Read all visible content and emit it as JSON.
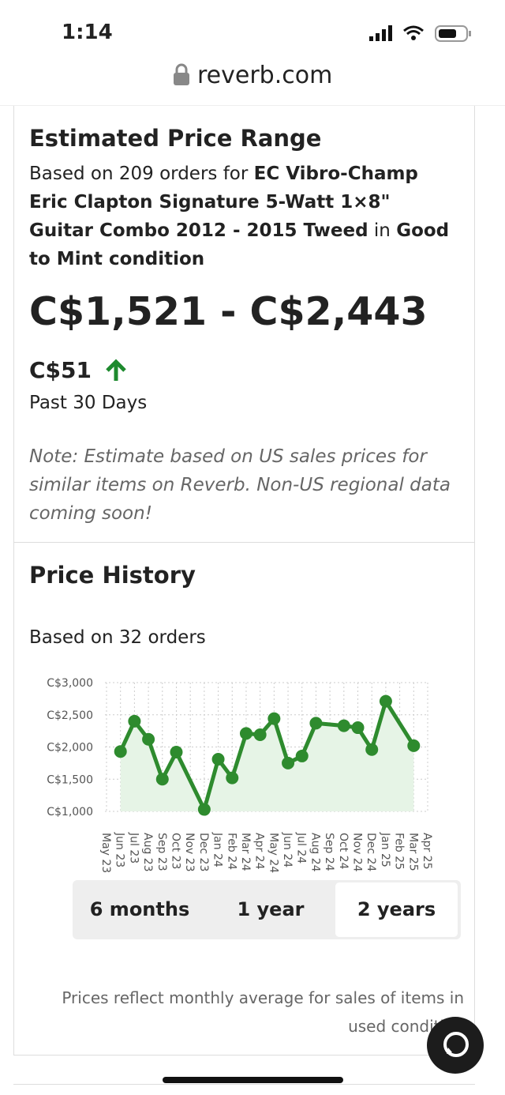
{
  "status_bar": {
    "time": "1:14"
  },
  "url": "reverb.com",
  "estimate": {
    "title": "Estimated Price Range",
    "intro": "Based on 209 orders for",
    "product": "EC Vibro-Champ Eric Clapton Signature 5-Watt 1×8\" Guitar Combo 2012 - 2015 Tweed",
    "connector": "in",
    "condition": "Good to Mint condition",
    "range": "C$1,521 - C$2,443",
    "change": "C$51",
    "period": "Past 30 Days",
    "note": "Note: Estimate based on US sales prices for similar items on Reverb. Non-US regional data coming soon!"
  },
  "history": {
    "title": "Price History",
    "subtitle": "Based on 32 orders",
    "chart_data": {
      "type": "line",
      "color": "#2e8b2e",
      "area_color": "#e6f4e6",
      "grid": true,
      "xticks": [
        "May 23",
        "Jun 23",
        "Jul 23",
        "Aug 23",
        "Sep 23",
        "Oct 23",
        "Nov 23",
        "Dec 23",
        "Jan 24",
        "Feb 24",
        "Mar 24",
        "Apr 24",
        "May 24",
        "Jun 24",
        "Jul 24",
        "Aug 24",
        "Sep 24",
        "Oct 24",
        "Nov 24",
        "Dec 24",
        "Jan 25",
        "Feb 25",
        "Mar 25",
        "Apr 25"
      ],
      "x": [
        "Jun 23",
        "Jul 23",
        "Aug 23",
        "Sep 23",
        "Oct 23",
        "Dec 23",
        "Jan 24",
        "Feb 24",
        "Mar 24",
        "Apr 24",
        "May 24",
        "Jun 24",
        "Jul 24",
        "Aug 24",
        "Oct 24",
        "Nov 24",
        "Dec 24",
        "Jan 25",
        "Mar 25"
      ],
      "values": [
        1930,
        2400,
        2120,
        1500,
        1920,
        1030,
        1810,
        1520,
        2210,
        2190,
        2440,
        1750,
        1860,
        2370,
        2330,
        2300,
        1960,
        2710,
        2020
      ],
      "ylim": [
        1000,
        3000
      ],
      "yticks": [
        {
          "value": 1000,
          "label": "C$1,000"
        },
        {
          "value": 1500,
          "label": "C$1,500"
        },
        {
          "value": 2000,
          "label": "C$2,000"
        },
        {
          "value": 2500,
          "label": "C$2,500"
        },
        {
          "value": 3000,
          "label": "C$3,000"
        }
      ]
    },
    "ranges": [
      "6 months",
      "1 year",
      "2 years"
    ],
    "footnote": "Prices reflect monthly average for sales of items in used condition"
  }
}
